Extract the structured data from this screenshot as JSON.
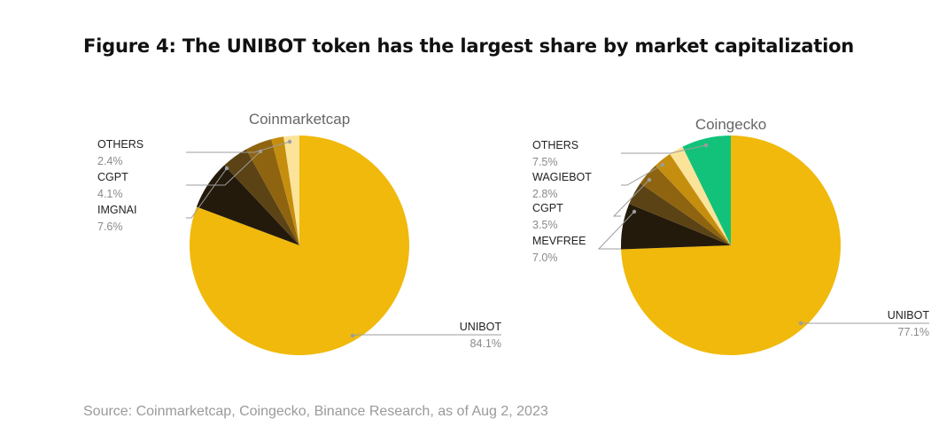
{
  "figure_title": "Figure 4: The UNIBOT token has the largest share by market capitalization",
  "source": "Source: Coinmarketcap, Coingecko, Binance Research, as of Aug 2, 2023",
  "chart_data": [
    {
      "type": "pie",
      "title": "Coinmarketcap",
      "slices": [
        {
          "name": "UNIBOT",
          "value": 84.1,
          "label": "84.1%",
          "color": "#F0B90B"
        },
        {
          "name": "IMGNAI",
          "value": 7.6,
          "label": "7.6%",
          "color": "#231A0C"
        },
        {
          "name": "",
          "value": 4.1,
          "label": "",
          "color": "#5C4315"
        },
        {
          "name": "CGPT",
          "value": 4.1,
          "label": "4.1%",
          "color": "#8F6410"
        },
        {
          "name": "",
          "value": 1.9,
          "label": "",
          "color": "#C58E0E"
        },
        {
          "name": "OTHERS",
          "value": 2.4,
          "label": "2.4%",
          "color": "#FBE39A"
        }
      ]
    },
    {
      "type": "pie",
      "title": "Coingecko",
      "slices": [
        {
          "name": "UNIBOT",
          "value": 77.1,
          "label": "77.1%",
          "color": "#F0B90B"
        },
        {
          "name": "MEVFREE",
          "value": 7.0,
          "label": "7.0%",
          "color": "#231A0C"
        },
        {
          "name": "",
          "value": 3.5,
          "label": "",
          "color": "#5C4315"
        },
        {
          "name": "CGPT",
          "value": 3.5,
          "label": "3.5%",
          "color": "#8F6410"
        },
        {
          "name": "WAGIEBOT",
          "value": 2.8,
          "label": "2.8%",
          "color": "#C58E0E"
        },
        {
          "name": "",
          "value": 2.2,
          "label": "",
          "color": "#FBE39A"
        },
        {
          "name": "OTHERS",
          "value": 7.5,
          "label": "7.5%",
          "color": "#13C27A"
        }
      ]
    }
  ]
}
